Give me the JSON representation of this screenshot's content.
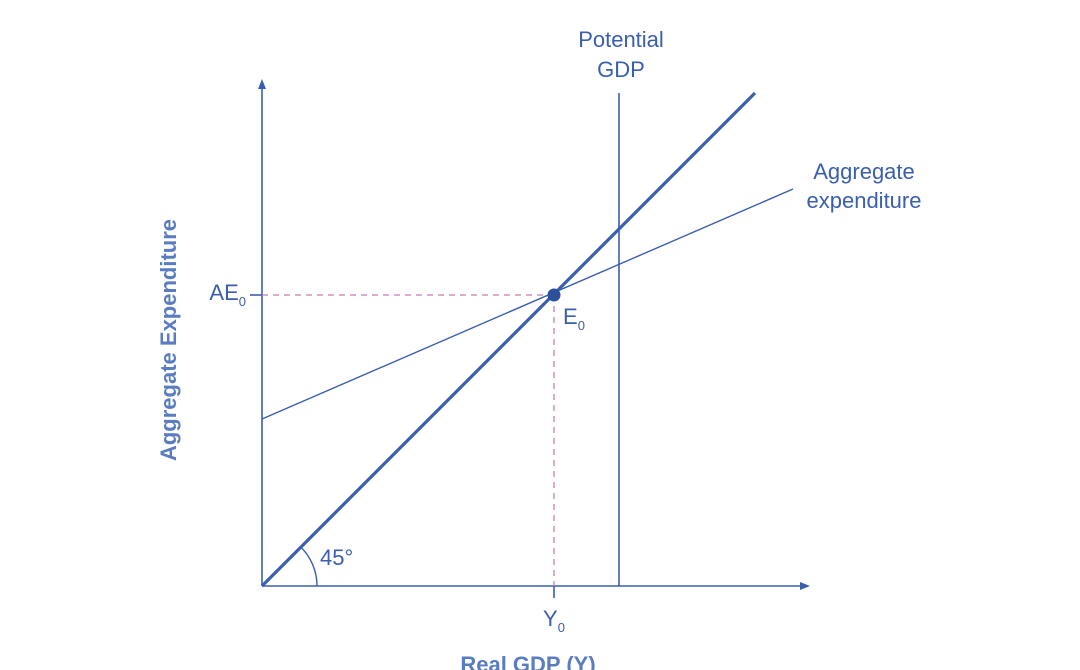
{
  "colors": {
    "line": "#3a5fae",
    "text": "#3a5fae",
    "axis_title": "#5a7cc0",
    "dashed": "#c77bb0"
  },
  "chart_data": {
    "type": "line",
    "ylabel": "Aggregate Expenditure",
    "xlabel": "Real GDP (Y)",
    "grid": false,
    "angle_label": "45°",
    "series": [
      {
        "name": "Potential GDP",
        "name_lines": [
          "Potential",
          "GDP"
        ]
      },
      {
        "name": "Aggregate expenditure",
        "name_lines": [
          "Aggregate",
          "expenditure"
        ]
      }
    ],
    "equilibrium": {
      "point": {
        "base": "E",
        "sub": "0"
      },
      "x_tick": {
        "base": "Y",
        "sub": "0"
      },
      "y_tick": {
        "base": "AE",
        "sub": "0"
      }
    }
  }
}
